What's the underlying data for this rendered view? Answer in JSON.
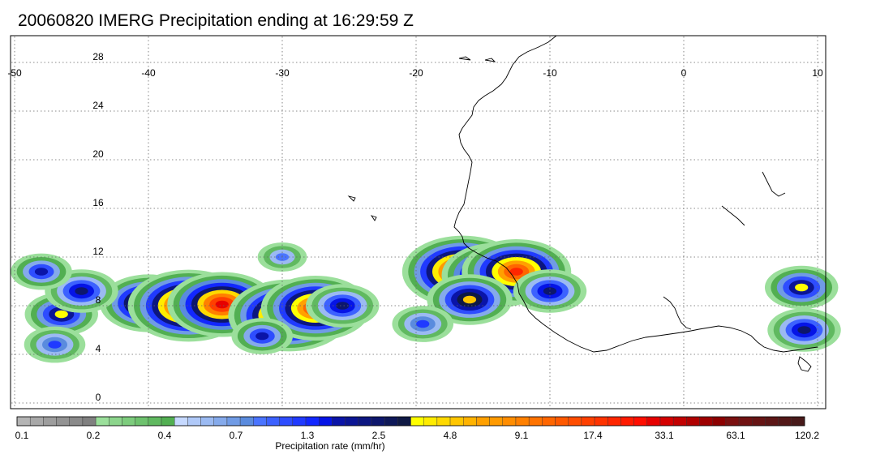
{
  "title": "20060820 IMERG Precipitation ending at 16:29:59 Z",
  "map": {
    "lon_range": [
      -50,
      10
    ],
    "lat_range": [
      -0.5,
      30
    ],
    "lon_ticks": [
      -50,
      -40,
      -30,
      -20,
      -10,
      0,
      10
    ],
    "lon_tick_labels": [
      "-50",
      "-40",
      "-30",
      "-20",
      "-10",
      "0",
      "10"
    ],
    "lat_ticks": [
      0,
      4,
      8,
      12,
      16,
      20,
      24,
      28
    ],
    "lat_tick_labels": [
      "0",
      "4",
      "8",
      "12",
      "16",
      "20",
      "24",
      "28"
    ],
    "grid": "dotted",
    "features": [
      "coastline-west-africa",
      "lakes-rivers"
    ]
  },
  "colorbar": {
    "label": "Precipitation rate (mm/hr)",
    "tick_labels": [
      "0.1",
      "0.2",
      "0.4",
      "0.7",
      "1.3",
      "2.5",
      "4.8",
      "9.1",
      "17.4",
      "33.1",
      "63.1",
      "120.2"
    ],
    "colors": [
      "#b4b4b4",
      "#a8a8a8",
      "#9d9d9d",
      "#939393",
      "#8a8a8a",
      "#808080",
      "#9bdf9b",
      "#8cd58c",
      "#7dcc7d",
      "#6ec26e",
      "#60b960",
      "#52af52",
      "#c6d9ff",
      "#b0c9f8",
      "#9bbaf2",
      "#85aaeb",
      "#709be5",
      "#5a8bde",
      "#4a74ff",
      "#3c61ff",
      "#2e4dff",
      "#203aff",
      "#1227ff",
      "#0514e6",
      "#0a14a8",
      "#0b1594",
      "#0c1680",
      "#0d176c",
      "#0e1858",
      "#0f1944",
      "#ffff00",
      "#ffec00",
      "#ffd900",
      "#ffc600",
      "#ffb300",
      "#ffa000",
      "#ff9a00",
      "#ff8d00",
      "#ff8000",
      "#ff7300",
      "#ff6600",
      "#ff5900",
      "#ff4d00",
      "#ff4000",
      "#ff3300",
      "#ff2600",
      "#ff1a00",
      "#ff0d00",
      "#e60000",
      "#d40000",
      "#c20000",
      "#b00000",
      "#9e0000",
      "#8c0000",
      "#7a1010",
      "#701212",
      "#661414",
      "#5c1616",
      "#521818",
      "#481a1a"
    ]
  },
  "precip_cells": [
    {
      "lon": -40,
      "lat": 8.2,
      "level": 14
    },
    {
      "lon": -37,
      "lat": 8.0,
      "level": 17
    },
    {
      "lon": -34.5,
      "lat": 8.1,
      "level": 16
    },
    {
      "lon": -29.5,
      "lat": 7.2,
      "level": 17
    },
    {
      "lon": -27.5,
      "lat": 7.8,
      "level": 15
    },
    {
      "lon": -46.5,
      "lat": 7.3,
      "level": 10
    },
    {
      "lon": -31.5,
      "lat": 5.5,
      "level": 8
    },
    {
      "lon": -16.5,
      "lat": 10.8,
      "level": 17
    },
    {
      "lon": -14,
      "lat": 10.5,
      "level": 16
    },
    {
      "lon": -12.5,
      "lat": 10.8,
      "level": 15
    },
    {
      "lon": -16,
      "lat": 8.5,
      "level": 11
    },
    {
      "lon": 8.8,
      "lat": 9.5,
      "level": 10
    },
    {
      "lon": -45,
      "lat": 9.2,
      "level": 9
    },
    {
      "lon": -10,
      "lat": 9.2,
      "level": 9
    },
    {
      "lon": 9,
      "lat": 6.0,
      "level": 9
    },
    {
      "lon": -25.5,
      "lat": 8.0,
      "level": 9
    },
    {
      "lon": -19.5,
      "lat": 6.5,
      "level": 7
    },
    {
      "lon": -48,
      "lat": 10.8,
      "level": 8
    },
    {
      "lon": -47,
      "lat": 4.8,
      "level": 7
    },
    {
      "lon": -30,
      "lat": 12.0,
      "level": 6
    }
  ]
}
